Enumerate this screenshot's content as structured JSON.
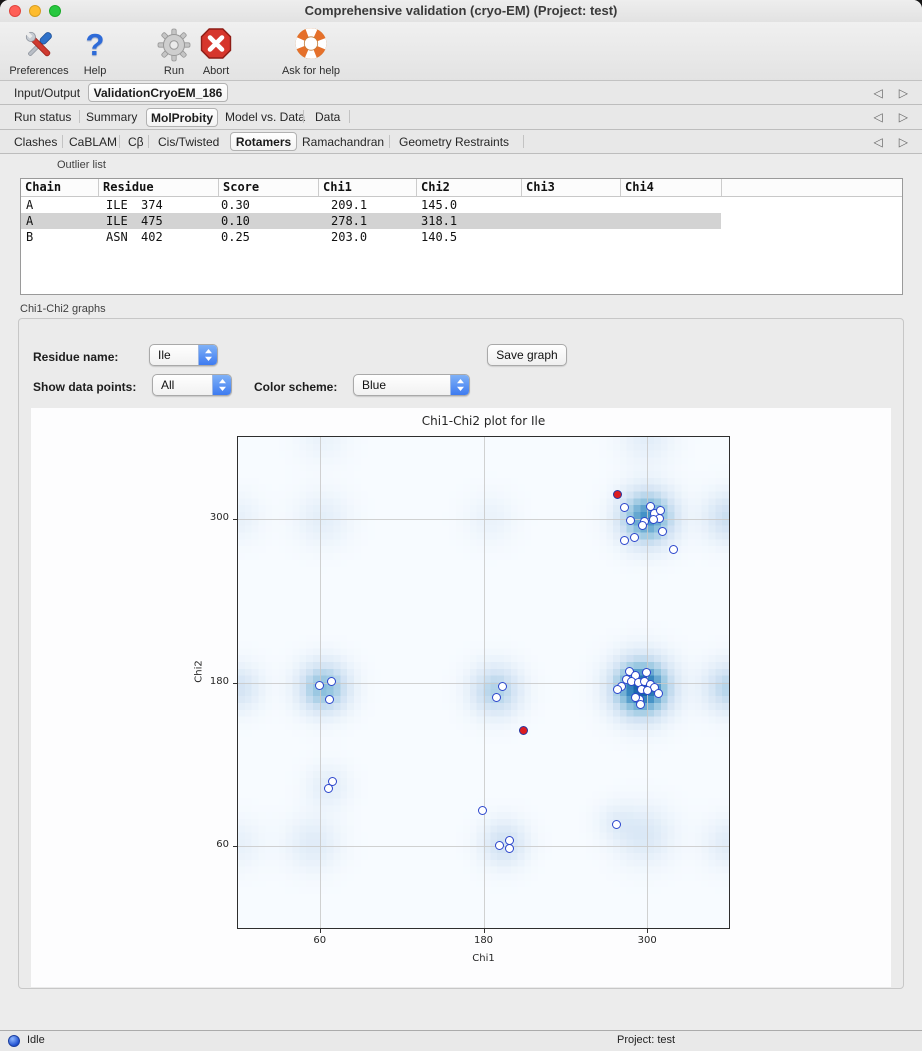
{
  "window_title": "Comprehensive validation (cryo-EM) (Project: test)",
  "toolbar": {
    "preferences": "Preferences",
    "help": "Help",
    "run": "Run",
    "abort": "Abort",
    "ask_for_help": "Ask for help"
  },
  "tabs1": {
    "input_output": "Input/Output",
    "validation": "ValidationCryoEM_186"
  },
  "tabs2": {
    "run_status": "Run status",
    "summary": "Summary",
    "molprobity": "MolProbity",
    "model_vs_data": "Model vs. Data",
    "data": "Data"
  },
  "tabs3": {
    "clashes": "Clashes",
    "cablam": "CaBLAM",
    "cbeta": "Cβ",
    "cis_twisted": "Cis/Twisted",
    "rotamers": "Rotamers",
    "ramachandran": "Ramachandran",
    "geometry_restraints": "Geometry Restraints"
  },
  "outliers": {
    "section_label": "Outlier list",
    "columns": [
      "Chain",
      "Residue",
      "Score",
      "Chi1",
      "Chi2",
      "Chi3",
      "Chi4"
    ],
    "rows": [
      {
        "chain": "A",
        "res_name": "ILE",
        "res_num": "374",
        "score": "0.30",
        "chi1": "209.1",
        "chi2": "145.0",
        "chi3": "",
        "chi4": ""
      },
      {
        "chain": "A",
        "res_name": "ILE",
        "res_num": "475",
        "score": "0.10",
        "chi1": "278.1",
        "chi2": "318.1",
        "chi3": "",
        "chi4": ""
      },
      {
        "chain": "B",
        "res_name": "ASN",
        "res_num": "402",
        "score": "0.25",
        "chi1": "203.0",
        "chi2": "140.5",
        "chi3": "",
        "chi4": ""
      }
    ],
    "selected_row_index": 1
  },
  "graphs": {
    "section_label": "Chi1-Chi2 graphs",
    "residue_name_label": "Residue name:",
    "residue_name_value": "Ile",
    "save_graph_label": "Save graph",
    "show_points_label": "Show data points:",
    "show_points_value": "All",
    "color_scheme_label": "Color scheme:",
    "color_scheme_value": "Blue"
  },
  "chart_data": {
    "type": "scatter",
    "title": "Chi1-Chi2 plot for Ile",
    "xlabel": "Chi1",
    "ylabel": "Chi2",
    "xlim": [
      0,
      360
    ],
    "ylim": [
      0,
      360
    ],
    "xticks": [
      60,
      180,
      300
    ],
    "yticks": [
      60,
      180,
      300
    ],
    "grid": true,
    "legend": "none",
    "colors": {
      "point_fill": "#ffffff",
      "point_edge": "#2b45cc",
      "outlier_fill": "#dd1d20",
      "outlier_edge": "#28359f",
      "plot_background": "#f7fafd",
      "grid": "#c9c9c9",
      "heat_stops": [
        [
          0,
          247,
          251,
          255
        ],
        [
          0.3,
          209,
          226,
          243
        ],
        [
          0.55,
          150,
          198,
          224
        ],
        [
          0.8,
          62,
          142,
          196
        ],
        [
          1,
          16,
          92,
          164
        ]
      ]
    },
    "points": [
      [
        60.0,
        177.8
      ],
      [
        68.8,
        180.7
      ],
      [
        67.4,
        167.5
      ],
      [
        194.0,
        177.1
      ],
      [
        189.6,
        169.0
      ],
      [
        69.6,
        107.1
      ],
      [
        66.6,
        102.0
      ],
      [
        179.3,
        86.5
      ],
      [
        277.2,
        76.2
      ],
      [
        191.8,
        60.7
      ],
      [
        199.1,
        64.4
      ],
      [
        199.1,
        58.5
      ],
      [
        283.1,
        308.1
      ],
      [
        287.5,
        298.5
      ],
      [
        302.2,
        308.8
      ],
      [
        305.2,
        303.7
      ],
      [
        309.6,
        305.9
      ],
      [
        308.8,
        300.0
      ],
      [
        304.4,
        299.3
      ],
      [
        297.8,
        297.8
      ],
      [
        296.3,
        294.8
      ],
      [
        311.0,
        290.4
      ],
      [
        290.4,
        286.0
      ],
      [
        283.1,
        283.8
      ],
      [
        319.1,
        277.2
      ],
      [
        286.7,
        188.1
      ],
      [
        291.1,
        185.2
      ],
      [
        299.3,
        187.4
      ],
      [
        284.5,
        182.2
      ],
      [
        288.2,
        180.7
      ],
      [
        293.3,
        180.0
      ],
      [
        297.8,
        180.7
      ],
      [
        302.2,
        178.5
      ],
      [
        305.2,
        176.3
      ],
      [
        308.1,
        171.9
      ],
      [
        280.9,
        177.1
      ],
      [
        278.0,
        174.9
      ],
      [
        295.6,
        174.9
      ],
      [
        300.0,
        174.1
      ],
      [
        294.1,
        167.5
      ],
      [
        294.8,
        163.8
      ],
      [
        291.1,
        169.0
      ]
    ],
    "outliers": [
      [
        209.1,
        145.0
      ],
      [
        278.1,
        318.1
      ]
    ],
    "density_blobs": [
      {
        "x": 296,
        "y": 176,
        "w": 1.0,
        "s": 15
      },
      {
        "x": 300,
        "y": 301,
        "w": 0.8,
        "s": 14
      },
      {
        "x": 63,
        "y": 176,
        "w": 0.6,
        "s": 13
      },
      {
        "x": 189,
        "y": 174,
        "w": 0.45,
        "s": 13
      },
      {
        "x": 195,
        "y": 62,
        "w": 0.3,
        "s": 12
      },
      {
        "x": 298,
        "y": 68,
        "w": 0.22,
        "s": 15
      },
      {
        "x": 55,
        "y": 62,
        "w": 0.18,
        "s": 14
      },
      {
        "x": 62,
        "y": 300,
        "w": 0.15,
        "s": 14
      },
      {
        "x": 185,
        "y": 300,
        "w": 0.1,
        "s": 13
      },
      {
        "x": 360,
        "y": 176,
        "w": 0.42,
        "s": 13
      },
      {
        "x": 0,
        "y": 176,
        "w": 0.28,
        "s": 12
      },
      {
        "x": 360,
        "y": 301,
        "w": 0.33,
        "s": 13
      },
      {
        "x": 0,
        "y": 301,
        "w": 0.12,
        "s": 12
      },
      {
        "x": 360,
        "y": 62,
        "w": 0.18,
        "s": 13
      },
      {
        "x": 0,
        "y": 62,
        "w": 0.12,
        "s": 13
      },
      {
        "x": 66,
        "y": 104,
        "w": 0.16,
        "s": 11
      },
      {
        "x": 277,
        "y": 78,
        "w": 0.12,
        "s": 10
      },
      {
        "x": 300,
        "y": 360,
        "w": 0.16,
        "s": 14
      },
      {
        "x": 62,
        "y": 360,
        "w": 0.1,
        "s": 13
      }
    ]
  },
  "statusbar": {
    "status": "Idle",
    "project": "Project: test"
  }
}
